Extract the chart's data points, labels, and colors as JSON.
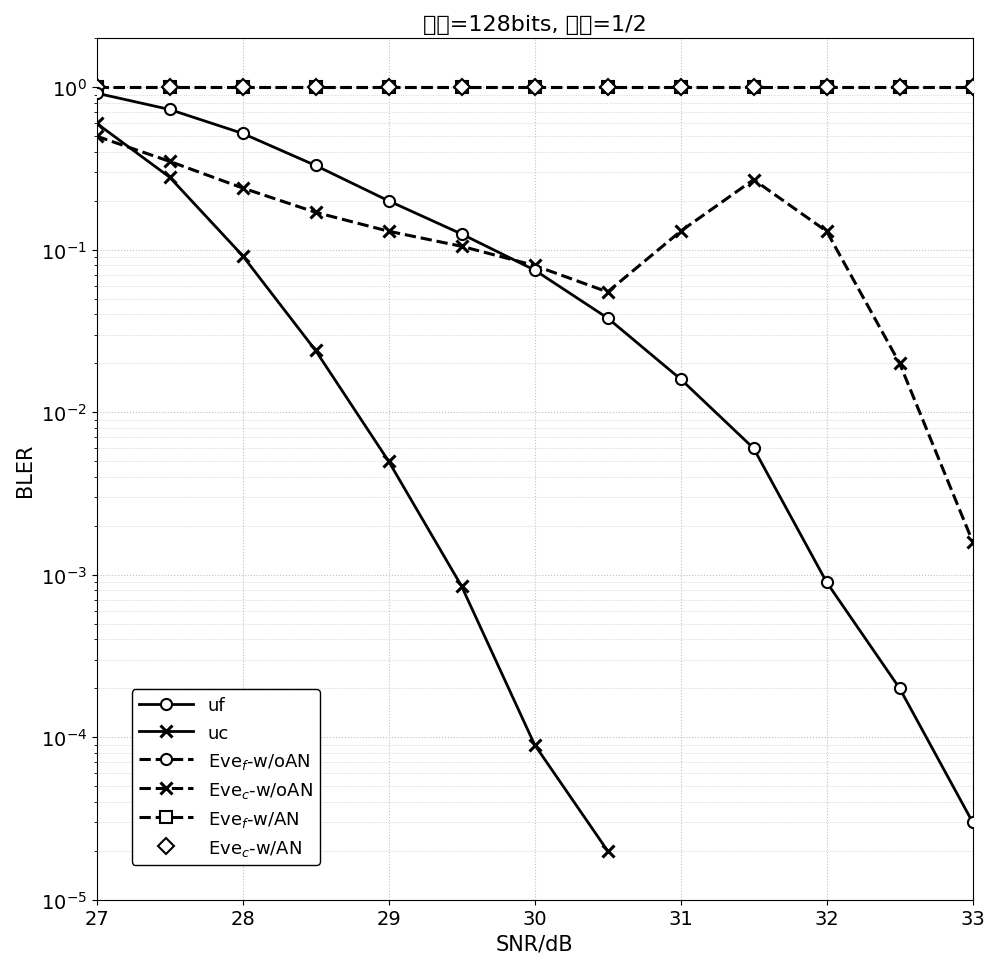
{
  "title": "码长=128bits, 码率=1/2",
  "xlabel": "SNR/dB",
  "ylabel": "BLER",
  "snr_int": [
    27,
    28,
    29,
    30,
    31,
    32,
    33
  ],
  "snr_half": [
    27,
    27.5,
    28,
    28.5,
    29,
    29.5,
    30,
    30.5,
    31,
    31.5,
    32,
    32.5,
    33
  ],
  "uf_snr": [
    27,
    27.5,
    28,
    28.5,
    29,
    29.5,
    30,
    30.5,
    31,
    31.5,
    32,
    32.5,
    33
  ],
  "uf_vals": [
    0.92,
    0.73,
    0.52,
    0.33,
    0.2,
    0.125,
    0.075,
    0.038,
    0.016,
    0.006,
    0.0009,
    0.0002,
    3e-05
  ],
  "uc_snr": [
    27,
    27.5,
    28,
    28.5,
    29,
    29.5,
    30,
    30.5
  ],
  "uc_vals": [
    0.6,
    0.28,
    0.092,
    0.024,
    0.005,
    0.00085,
    9e-05,
    2e-05
  ],
  "eve_f_woAN_snr": [
    27,
    27.5,
    28,
    28.5,
    29,
    29.5,
    30,
    30.5,
    31,
    31.5,
    32,
    32.5,
    33
  ],
  "eve_f_woAN_vals": [
    1.0,
    1.0,
    1.0,
    1.0,
    1.0,
    1.0,
    1.0,
    1.0,
    1.0,
    1.0,
    1.0,
    1.0,
    1.0
  ],
  "eve_c_woAN_snr": [
    27,
    27.5,
    28,
    28.5,
    29,
    29.5,
    30,
    30.5,
    31,
    31.5,
    32,
    32.5,
    33
  ],
  "eve_c_woAN_vals": [
    0.5,
    0.35,
    0.24,
    0.17,
    0.13,
    0.105,
    0.08,
    0.055,
    0.13,
    0.27,
    0.13,
    0.02,
    0.0016
  ],
  "eve_f_wAN_snr": [
    27,
    27.5,
    28,
    28.5,
    29,
    29.5,
    30,
    30.5,
    31,
    31.5,
    32,
    32.5,
    33
  ],
  "eve_f_wAN_vals": [
    1.0,
    1.0,
    1.0,
    1.0,
    1.0,
    1.0,
    1.0,
    1.0,
    1.0,
    1.0,
    1.0,
    1.0,
    1.0
  ],
  "eve_c_wAN_snr": [
    27,
    27.5,
    28,
    28.5,
    29,
    29.5,
    30,
    30.5,
    31,
    31.5,
    32,
    32.5,
    33
  ],
  "eve_c_wAN_vals": [
    1.0,
    1.0,
    1.0,
    1.0,
    1.0,
    1.0,
    1.0,
    1.0,
    1.0,
    1.0,
    1.0,
    1.0,
    1.0
  ],
  "background_color": "#ffffff",
  "grid_color": "#c0c0c0",
  "line_color": "#000000",
  "ms": 8,
  "lw_solid": 2.0,
  "lw_dashed": 2.2
}
